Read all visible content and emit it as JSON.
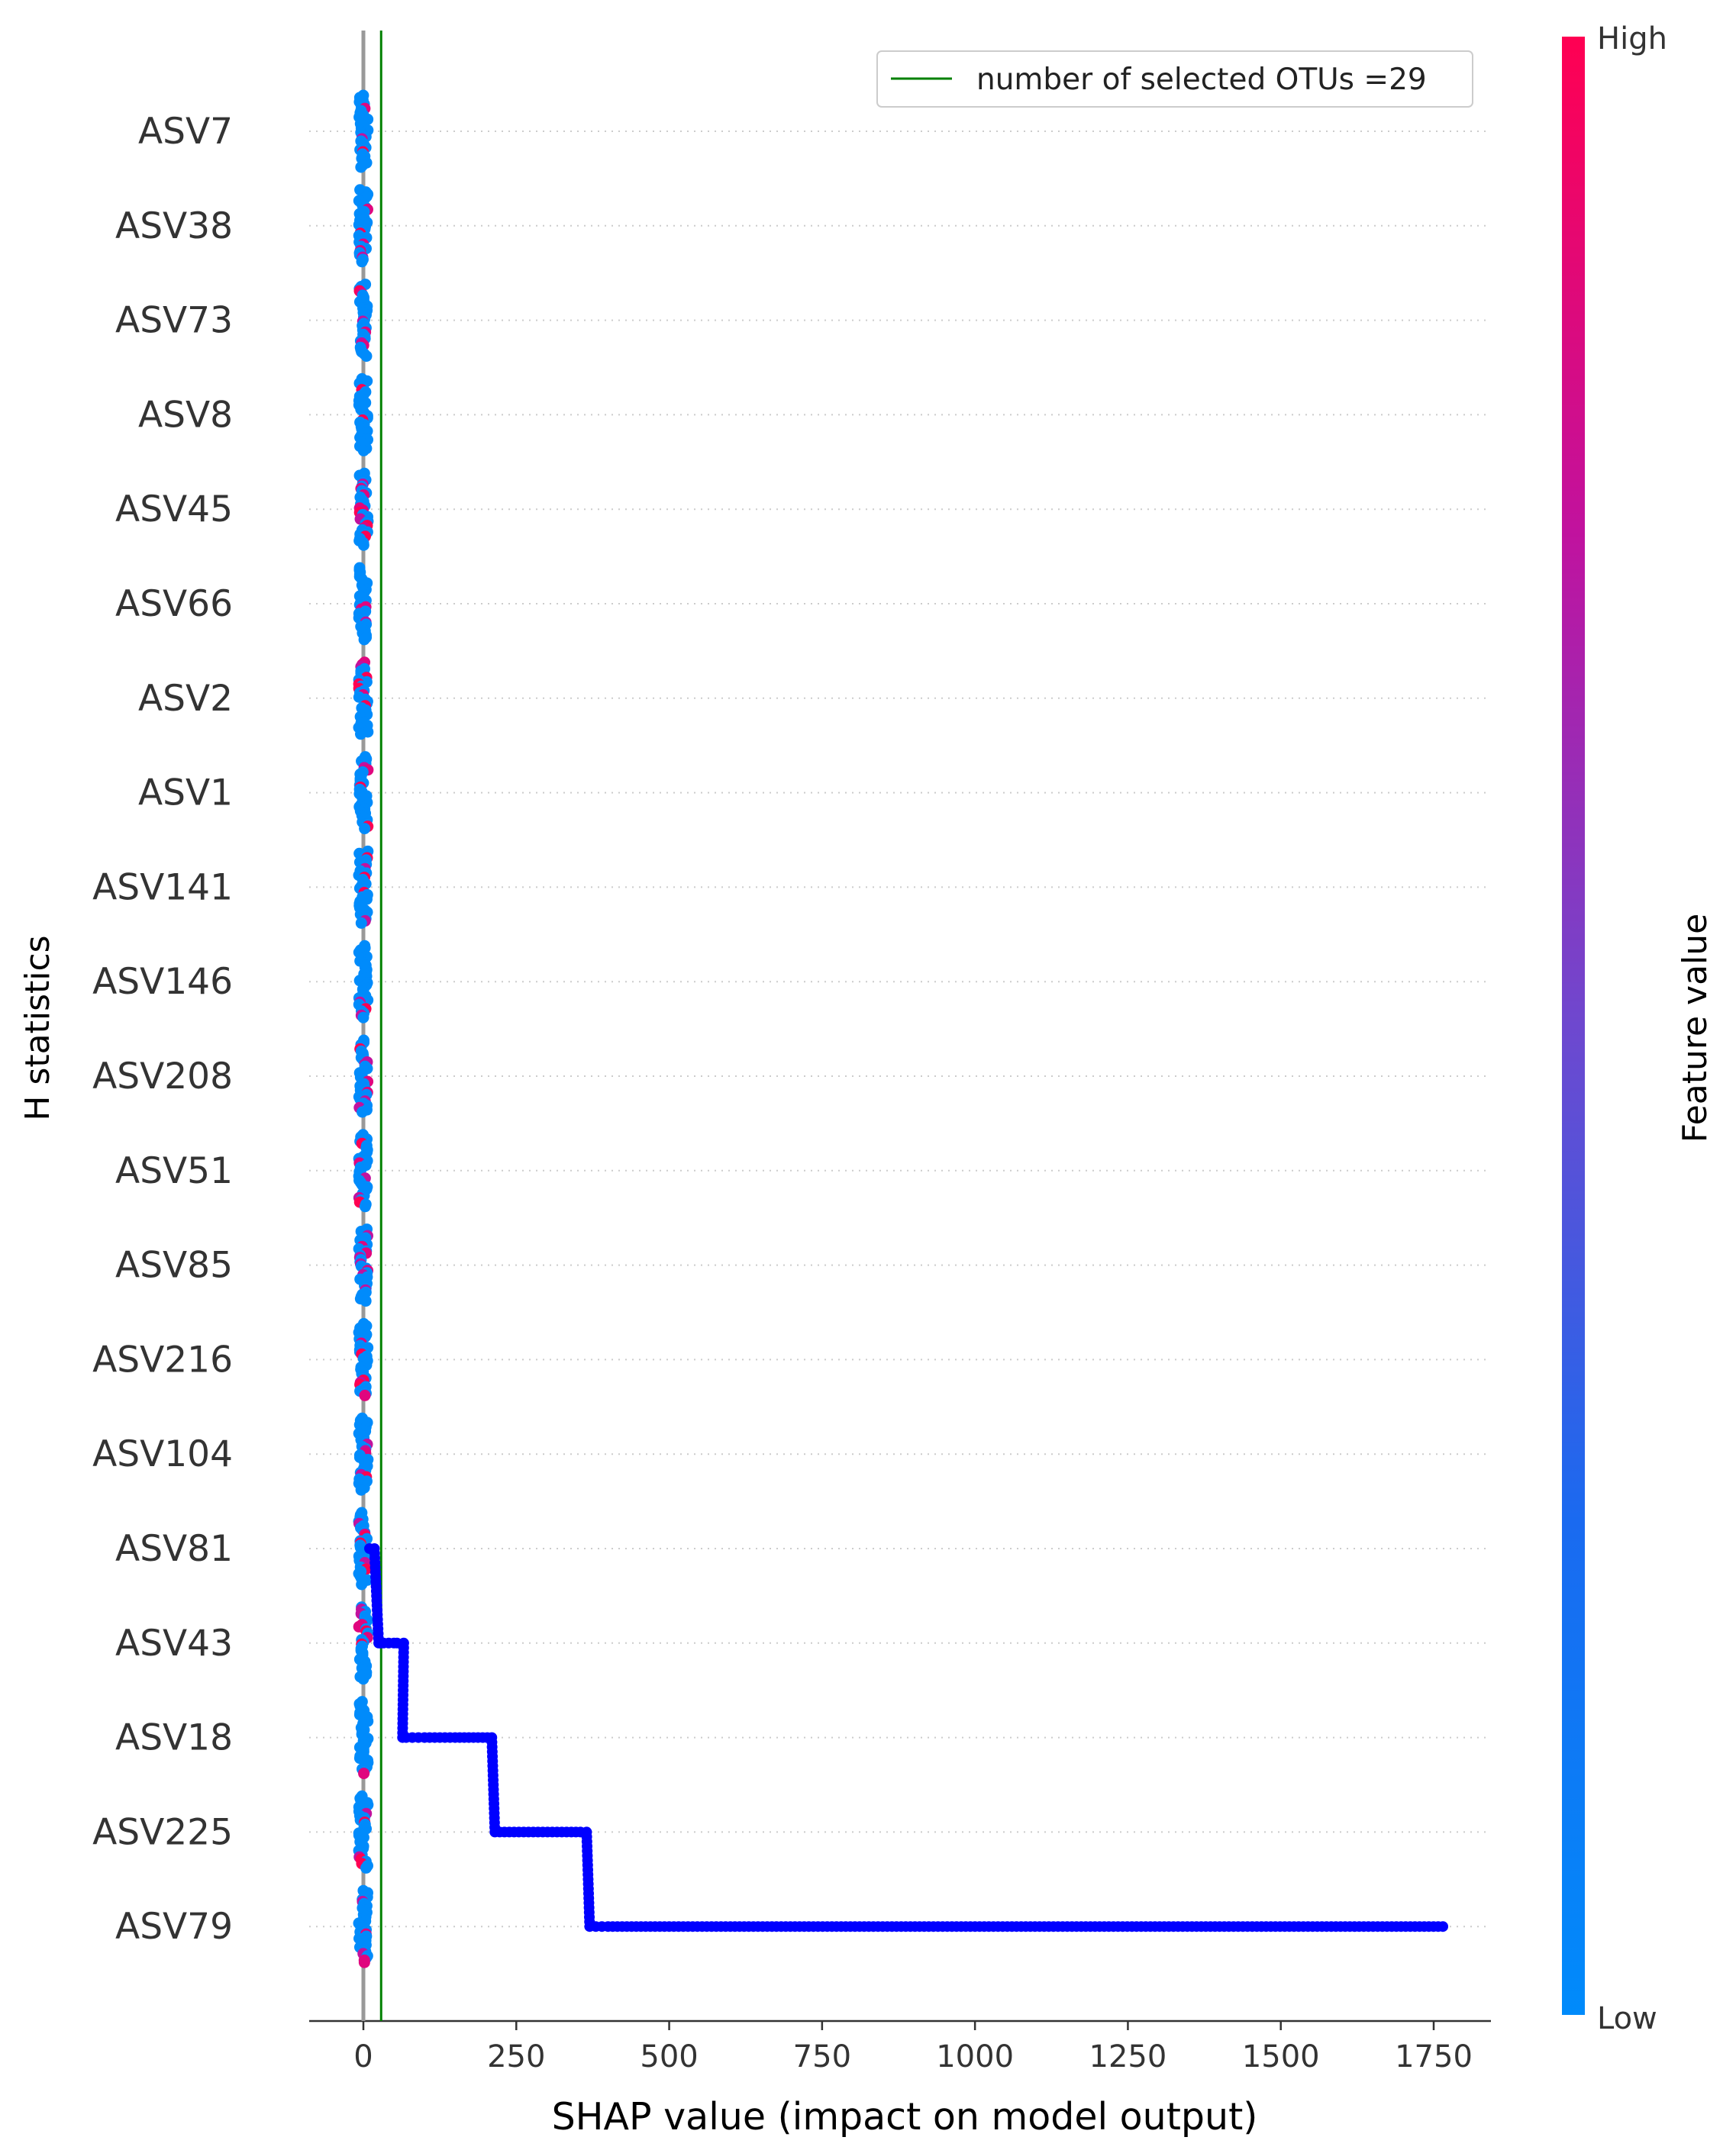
{
  "chart_data": {
    "type": "scatter",
    "subtype": "shap-beeswarm",
    "ylabel": "H statistics",
    "xlabel": "SHAP value (impact on model output)",
    "xlim": [
      -88,
      1850
    ],
    "xticks": [
      0,
      250,
      500,
      750,
      1000,
      1250,
      1500,
      1750
    ],
    "xtick_labels": [
      "0",
      "250",
      "500",
      "750",
      "1000",
      "1250",
      "1500",
      "1750"
    ],
    "features": [
      "ASV7",
      "ASV38",
      "ASV73",
      "ASV8",
      "ASV45",
      "ASV66",
      "ASV2",
      "ASV1",
      "ASV141",
      "ASV146",
      "ASV208",
      "ASV51",
      "ASV85",
      "ASV216",
      "ASV104",
      "ASV81",
      "ASV43",
      "ASV18",
      "ASV225",
      "ASV79"
    ],
    "zero_line_x": 0,
    "threshold_line": {
      "x": 29,
      "label": "number of selected OTUs =29",
      "color": "#008000"
    },
    "legend": {
      "position": "top-right",
      "entries": [
        "number of selected OTUs =29"
      ]
    },
    "colorbar": {
      "label": "Feature value",
      "high": "High",
      "low": "Low",
      "colors": [
        "#008bfb",
        "#ff0052"
      ]
    },
    "grid": "dotted horizontal per feature",
    "highlight_series": {
      "name": "",
      "color": "#0000ff",
      "points": [
        {
          "feature": "ASV81",
          "x": 10
        },
        {
          "feature": "ASV81",
          "x": 18
        },
        {
          "feature": "ASV43",
          "x": 25
        },
        {
          "feature": "ASV43",
          "x": 28
        },
        {
          "feature": "ASV43",
          "x": 33
        },
        {
          "feature": "ASV43",
          "x": 50
        },
        {
          "feature": "ASV43",
          "x": 55
        },
        {
          "feature": "ASV43",
          "x": 66
        },
        {
          "feature": "ASV18",
          "x": 64
        },
        {
          "feature": "ASV18",
          "x": 70
        },
        {
          "feature": "ASV18",
          "x": 80
        },
        {
          "feature": "ASV18",
          "x": 100
        },
        {
          "feature": "ASV18",
          "x": 150
        },
        {
          "feature": "ASV18",
          "x": 210
        },
        {
          "feature": "ASV225",
          "x": 215
        },
        {
          "feature": "ASV225",
          "x": 270
        },
        {
          "feature": "ASV225",
          "x": 340
        },
        {
          "feature": "ASV225",
          "x": 355
        },
        {
          "feature": "ASV225",
          "x": 365
        },
        {
          "feature": "ASV79",
          "x": 370
        },
        {
          "feature": "ASV79",
          "x": 380
        },
        {
          "feature": "ASV79",
          "x": 400
        },
        {
          "feature": "ASV79",
          "x": 600
        },
        {
          "feature": "ASV79",
          "x": 1000
        },
        {
          "feature": "ASV79",
          "x": 1400
        },
        {
          "feature": "ASV79",
          "x": 1765
        }
      ]
    }
  }
}
